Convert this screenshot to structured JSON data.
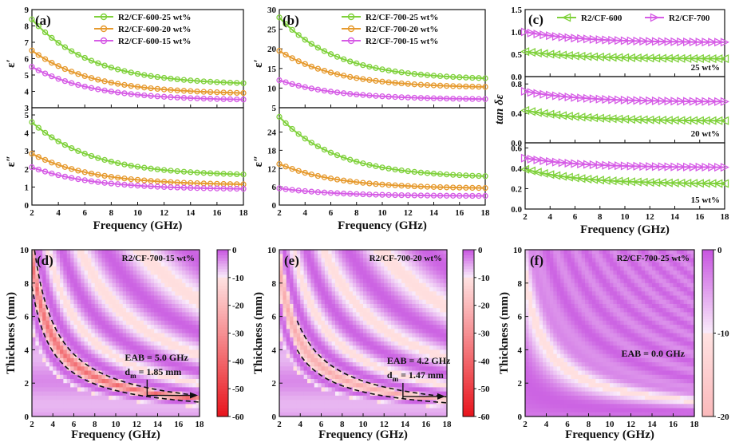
{
  "chart_data": [
    {
      "type": "line",
      "panel": "a",
      "letter": "(a)",
      "xlabel": "Frequency (GHz)",
      "xlim": [
        2,
        18
      ],
      "xticks": [
        2,
        4,
        6,
        8,
        10,
        12,
        14,
        16,
        18
      ],
      "upper": {
        "ylabel": "ε′",
        "ylim": [
          3,
          9
        ],
        "yticks": [
          3,
          4,
          5,
          6,
          7,
          8,
          9
        ]
      },
      "lower": {
        "ylabel": "ε″",
        "ylim": [
          0,
          5.4
        ],
        "yticks": [
          0,
          1,
          2,
          3,
          4,
          5
        ]
      },
      "legend": "top-right",
      "series": [
        {
          "name": "R2/CF-600-25 wt%",
          "color": "#7fd13b",
          "upper": {
            "start": 8.4,
            "end": 4.5
          },
          "lower": {
            "start": 4.6,
            "end": 1.7
          }
        },
        {
          "name": "R2/CF-600-20 wt%",
          "color": "#e69a2e",
          "upper": {
            "start": 6.5,
            "end": 3.9
          },
          "lower": {
            "start": 2.85,
            "end": 1.15
          }
        },
        {
          "name": "R2/CF-600-15 wt%",
          "color": "#d65ce6",
          "upper": {
            "start": 5.5,
            "end": 3.5
          },
          "lower": {
            "start": 2.1,
            "end": 0.9
          }
        }
      ]
    },
    {
      "type": "line",
      "panel": "b",
      "letter": "(b)",
      "xlabel": "Frequency (GHz)",
      "xlim": [
        2,
        18
      ],
      "xticks": [
        2,
        4,
        6,
        8,
        10,
        12,
        14,
        16,
        18
      ],
      "upper": {
        "ylabel": "ε′",
        "ylim": [
          5,
          30
        ],
        "yticks": [
          5,
          10,
          15,
          20,
          25,
          30
        ]
      },
      "lower": {
        "ylabel": "ε″",
        "ylim": [
          0,
          32
        ],
        "yticks": [
          0,
          6,
          12,
          18,
          24
        ]
      },
      "legend": "top-right",
      "series": [
        {
          "name": "R2/CF-700-25 wt%",
          "color": "#7fd13b",
          "upper": {
            "start": 28,
            "end": 12.5
          },
          "lower": {
            "start": 29,
            "end": 9.5
          }
        },
        {
          "name": "R2/CF-700-20 wt%",
          "color": "#e69a2e",
          "upper": {
            "start": 19.5,
            "end": 10.3
          },
          "lower": {
            "start": 13.5,
            "end": 5.6
          }
        },
        {
          "name": "R2/CF-700-15 wt%",
          "color": "#d65ce6",
          "upper": {
            "start": 12,
            "end": 7.2
          },
          "lower": {
            "start": 5.5,
            "end": 3
          }
        }
      ]
    },
    {
      "type": "line",
      "panel": "c",
      "letter": "(c)",
      "xlabel": "Frequency (GHz)",
      "ylabel": "tan δε",
      "xlim": [
        2,
        18
      ],
      "xticks": [
        2,
        4,
        6,
        8,
        10,
        12,
        14,
        16,
        18
      ],
      "legend": "top",
      "series_names": [
        "R2/CF-600",
        "R2/CF-700"
      ],
      "colors": [
        "#7fd13b",
        "#d65ce6"
      ],
      "subpanels": [
        {
          "note": "25 wt%",
          "ylim": [
            0,
            1.5
          ],
          "yticks": [
            0.0,
            0.5,
            1.0,
            1.5
          ],
          "cf600": {
            "start": 0.56,
            "end": 0.4
          },
          "cf700": {
            "start": 1.0,
            "end": 0.77
          }
        },
        {
          "note": "20 wt%",
          "ylim": [
            0,
            0.9
          ],
          "yticks": [
            0.0,
            0.4,
            0.8
          ],
          "cf600": {
            "start": 0.44,
            "end": 0.3
          },
          "cf700": {
            "start": 0.7,
            "end": 0.56
          }
        },
        {
          "note": "15 wt%",
          "ylim": [
            0,
            0.65
          ],
          "yticks": [
            0.0,
            0.2,
            0.4,
            0.6
          ],
          "cf600": {
            "start": 0.39,
            "end": 0.25
          },
          "cf700": {
            "start": 0.5,
            "end": 0.41
          }
        }
      ]
    },
    {
      "type": "heatmap",
      "panel": "d",
      "letter": "(d)",
      "title": "R2/CF-700-15 wt%",
      "xlabel": "Frequency (GHz)",
      "ylabel": "Thickness (mm)",
      "xlim": [
        2,
        18
      ],
      "ylim": [
        0,
        10
      ],
      "xticks": [
        2,
        4,
        6,
        8,
        10,
        12,
        14,
        16,
        18
      ],
      "yticks": [
        0,
        2,
        4,
        6,
        8,
        10
      ],
      "colorbar": {
        "ticks": [
          0,
          -10,
          -20,
          -30,
          -40,
          -50,
          -60
        ],
        "range": [
          -60,
          0
        ]
      },
      "eab_label": "EAB = 5.0 GHz",
      "dm_label": "d",
      "dm_sub": "m",
      "dm_value": " = 1.85 mm",
      "dm_curve_k": 19,
      "eab_band": [
        13,
        18
      ]
    },
    {
      "type": "heatmap",
      "panel": "e",
      "letter": "(e)",
      "title": "R2/CF-700-20 wt%",
      "xlabel": "Frequency (GHz)",
      "ylabel": "Thickness (mm)",
      "xlim": [
        2,
        18
      ],
      "ylim": [
        0,
        10
      ],
      "xticks": [
        2,
        4,
        6,
        8,
        10,
        12,
        14,
        16,
        18
      ],
      "yticks": [
        0,
        2,
        4,
        6,
        8,
        10
      ],
      "colorbar": {
        "ticks": [
          0,
          -10,
          -20,
          -30,
          -40,
          -50,
          -60
        ],
        "range": [
          -60,
          0
        ]
      },
      "eab_label": "EAB = 4.2 GHz",
      "dm_label": "d",
      "dm_sub": "m",
      "dm_value": " = 1.47 mm",
      "dm_curve_k": 18,
      "eab_band": [
        13.8,
        18
      ]
    },
    {
      "type": "heatmap",
      "panel": "f",
      "letter": "(f)",
      "title": "R2/CF-700-25 wt%",
      "xlabel": "Frequency (GHz)",
      "ylabel": "Thickness (mm)",
      "xlim": [
        2,
        18
      ],
      "ylim": [
        0,
        10
      ],
      "xticks": [
        2,
        4,
        6,
        8,
        10,
        12,
        14,
        16,
        18
      ],
      "yticks": [
        0,
        2,
        4,
        6,
        8,
        10
      ],
      "colorbar": {
        "ticks": [
          0,
          -10,
          -20
        ],
        "range": [
          -20,
          0
        ]
      },
      "eab_label": "EAB = 0.0 GHz"
    }
  ]
}
